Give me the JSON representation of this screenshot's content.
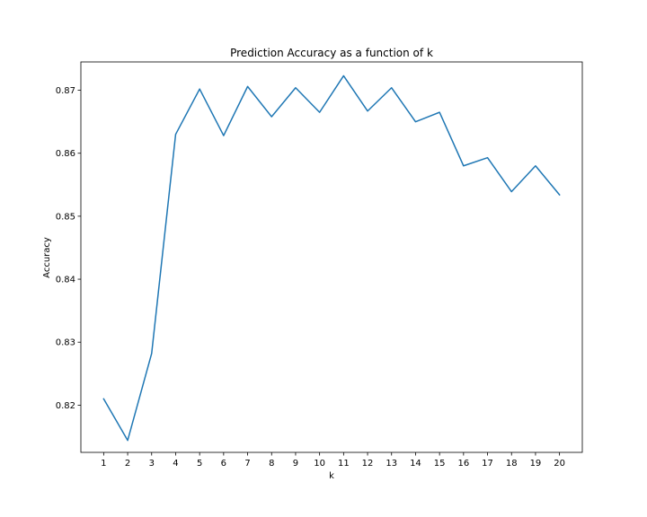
{
  "chart_data": {
    "type": "line",
    "title": "Prediction Accuracy as a function of k",
    "xlabel": "k",
    "ylabel": "Accuracy",
    "xlim": [
      0.05,
      20.95
    ],
    "ylim": [
      0.8125,
      0.8745
    ],
    "x_ticks": [
      1,
      2,
      3,
      4,
      5,
      6,
      7,
      8,
      9,
      10,
      11,
      12,
      13,
      14,
      15,
      16,
      17,
      18,
      19,
      20
    ],
    "y_ticks": [
      0.82,
      0.83,
      0.84,
      0.85,
      0.86,
      0.87
    ],
    "y_tick_labels": [
      "0.82",
      "0.83",
      "0.84",
      "0.85",
      "0.86",
      "0.87"
    ],
    "grid": false,
    "series": [
      {
        "color": "#1f77b4",
        "x": [
          1,
          2,
          3,
          4,
          5,
          6,
          7,
          8,
          9,
          10,
          11,
          12,
          13,
          14,
          15,
          16,
          17,
          18,
          19,
          20
        ],
        "y": [
          0.821,
          0.8144,
          0.8282,
          0.863,
          0.8702,
          0.8628,
          0.8706,
          0.8658,
          0.8704,
          0.8665,
          0.8723,
          0.8667,
          0.8704,
          0.865,
          0.8665,
          0.858,
          0.8593,
          0.8539,
          0.858,
          0.8534
        ]
      }
    ]
  }
}
